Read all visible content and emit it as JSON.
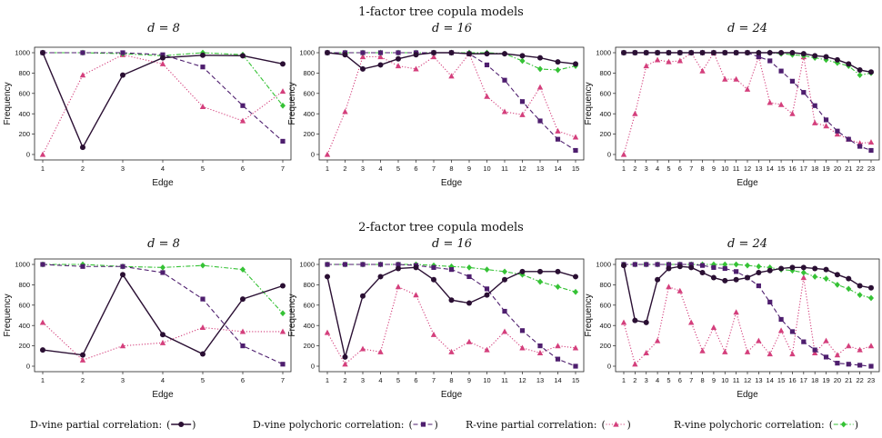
{
  "figure": {
    "section_titles": [
      "1-factor tree copula models",
      "2-factor tree copula models"
    ],
    "legend": [
      {
        "label": "D-vine partial correlation:",
        "series": "dpart"
      },
      {
        "label": "D-vine polychoric correlation:",
        "series": "dpoly"
      },
      {
        "label": "R-vine partial correlation:",
        "series": "rpart"
      },
      {
        "label": "R-vine polychoric correlation:",
        "series": "rpoly"
      }
    ]
  },
  "series_styles": {
    "dpart": {
      "color": "#2a0f33",
      "dash": "",
      "marker": "circle",
      "width": 1.4
    },
    "dpoly": {
      "color": "#4e1e6e",
      "dash": "5,3",
      "marker": "square",
      "width": 1.1
    },
    "rpart": {
      "color": "#d43f7c",
      "dash": "1.2,2",
      "marker": "triangle",
      "width": 1.1
    },
    "rpoly": {
      "color": "#35c235",
      "dash": "5,2,1.5,2",
      "marker": "diamond",
      "width": 1.1
    }
  },
  "chart_data": [
    {
      "type": "line",
      "section": "1-factor tree copula models",
      "title": "d = 8",
      "xlabel": "Edge",
      "ylabel": "Frequency",
      "ylim": [
        0,
        1000
      ],
      "yticks": [
        0,
        200,
        400,
        600,
        800,
        1000
      ],
      "x": [
        1,
        2,
        3,
        4,
        5,
        6,
        7
      ],
      "series": [
        {
          "key": "dpart",
          "values": [
            1000,
            70,
            780,
            950,
            975,
            970,
            890
          ]
        },
        {
          "key": "dpoly",
          "values": [
            1000,
            1000,
            1000,
            980,
            860,
            480,
            130
          ]
        },
        {
          "key": "rpart",
          "values": [
            0,
            780,
            980,
            890,
            470,
            330,
            620
          ]
        },
        {
          "key": "rpoly",
          "values": [
            1000,
            1000,
            990,
            970,
            1000,
            980,
            480
          ]
        }
      ]
    },
    {
      "type": "line",
      "section": "1-factor tree copula models",
      "title": "d = 16",
      "xlabel": "Edge",
      "ylabel": "Frequency",
      "ylim": [
        0,
        1000
      ],
      "yticks": [
        0,
        200,
        400,
        600,
        800,
        1000
      ],
      "x": [
        1,
        2,
        3,
        4,
        5,
        6,
        7,
        8,
        9,
        10,
        11,
        12,
        13,
        14,
        15
      ],
      "series": [
        {
          "key": "dpart",
          "values": [
            1000,
            980,
            840,
            880,
            940,
            980,
            1000,
            1000,
            990,
            990,
            990,
            970,
            950,
            910,
            890
          ]
        },
        {
          "key": "dpoly",
          "values": [
            1000,
            1000,
            1000,
            1000,
            1000,
            1000,
            1000,
            1000,
            990,
            880,
            730,
            520,
            330,
            150,
            40
          ]
        },
        {
          "key": "rpart",
          "values": [
            0,
            420,
            960,
            960,
            870,
            840,
            960,
            770,
            990,
            570,
            420,
            390,
            660,
            230,
            170
          ]
        },
        {
          "key": "rpoly",
          "values": [
            1000,
            1000,
            1000,
            1000,
            1000,
            1000,
            1000,
            1000,
            1000,
            1000,
            990,
            920,
            840,
            830,
            870
          ]
        }
      ]
    },
    {
      "type": "line",
      "section": "1-factor tree copula models",
      "title": "d = 24",
      "xlabel": "Edge",
      "ylabel": "Frequency",
      "ylim": [
        0,
        1000
      ],
      "yticks": [
        0,
        200,
        400,
        600,
        800,
        1000
      ],
      "x": [
        1,
        2,
        3,
        4,
        5,
        6,
        7,
        8,
        9,
        10,
        11,
        12,
        13,
        14,
        15,
        16,
        17,
        18,
        19,
        20,
        21,
        22,
        23
      ],
      "series": [
        {
          "key": "dpart",
          "values": [
            1000,
            1000,
            1000,
            1000,
            1000,
            1000,
            1000,
            1000,
            1000,
            1000,
            1000,
            1000,
            1000,
            1000,
            1000,
            1000,
            990,
            970,
            960,
            930,
            890,
            830,
            810
          ]
        },
        {
          "key": "dpoly",
          "values": [
            1000,
            1000,
            1000,
            1000,
            1000,
            1000,
            1000,
            1000,
            1000,
            1000,
            1000,
            1000,
            960,
            920,
            820,
            720,
            610,
            480,
            340,
            230,
            150,
            80,
            40
          ]
        },
        {
          "key": "rpart",
          "values": [
            0,
            400,
            870,
            930,
            910,
            920,
            1000,
            820,
            1000,
            740,
            740,
            640,
            960,
            510,
            490,
            400,
            960,
            310,
            280,
            200,
            150,
            110,
            120
          ]
        },
        {
          "key": "rpoly",
          "values": [
            1000,
            1000,
            1000,
            1000,
            1000,
            1000,
            1000,
            1000,
            1000,
            1000,
            1000,
            1000,
            1000,
            1000,
            990,
            980,
            970,
            950,
            930,
            900,
            870,
            780,
            800
          ]
        }
      ]
    },
    {
      "type": "line",
      "section": "2-factor tree copula models",
      "title": "d = 8",
      "xlabel": "Edge",
      "ylabel": "Frequency",
      "ylim": [
        0,
        1000
      ],
      "yticks": [
        0,
        200,
        400,
        600,
        800,
        1000
      ],
      "x": [
        1,
        2,
        3,
        4,
        5,
        6,
        7
      ],
      "series": [
        {
          "key": "dpart",
          "values": [
            160,
            110,
            900,
            310,
            120,
            660,
            790
          ]
        },
        {
          "key": "dpoly",
          "values": [
            1000,
            980,
            980,
            920,
            660,
            200,
            20
          ]
        },
        {
          "key": "rpart",
          "values": [
            430,
            60,
            200,
            230,
            380,
            340,
            340
          ]
        },
        {
          "key": "rpoly",
          "values": [
            1000,
            1000,
            980,
            970,
            990,
            950,
            520
          ]
        }
      ]
    },
    {
      "type": "line",
      "section": "2-factor tree copula models",
      "title": "d = 16",
      "xlabel": "Edge",
      "ylabel": "Frequency",
      "ylim": [
        0,
        1000
      ],
      "yticks": [
        0,
        200,
        400,
        600,
        800,
        1000
      ],
      "x": [
        1,
        2,
        3,
        4,
        5,
        6,
        7,
        8,
        9,
        10,
        11,
        12,
        13,
        14,
        15
      ],
      "series": [
        {
          "key": "dpart",
          "values": [
            880,
            90,
            690,
            880,
            960,
            970,
            850,
            650,
            620,
            700,
            850,
            930,
            930,
            930,
            880
          ]
        },
        {
          "key": "dpoly",
          "values": [
            1000,
            1000,
            1000,
            1000,
            1000,
            990,
            970,
            950,
            880,
            760,
            540,
            350,
            200,
            70,
            0
          ]
        },
        {
          "key": "rpart",
          "values": [
            330,
            20,
            170,
            140,
            780,
            700,
            310,
            140,
            240,
            160,
            340,
            180,
            130,
            200,
            180
          ]
        },
        {
          "key": "rpoly",
          "values": [
            1000,
            1000,
            1000,
            1000,
            1000,
            1000,
            990,
            980,
            970,
            950,
            930,
            900,
            830,
            780,
            730
          ]
        }
      ]
    },
    {
      "type": "line",
      "section": "2-factor tree copula models",
      "title": "d = 24",
      "xlabel": "Edge",
      "ylabel": "Frequency",
      "ylim": [
        0,
        1000
      ],
      "yticks": [
        0,
        200,
        400,
        600,
        800,
        1000
      ],
      "x": [
        1,
        2,
        3,
        4,
        5,
        6,
        7,
        8,
        9,
        10,
        11,
        12,
        13,
        14,
        15,
        16,
        17,
        18,
        19,
        20,
        21,
        22,
        23
      ],
      "series": [
        {
          "key": "dpart",
          "values": [
            990,
            450,
            430,
            850,
            960,
            980,
            970,
            920,
            870,
            840,
            850,
            870,
            920,
            940,
            960,
            970,
            970,
            960,
            950,
            900,
            860,
            790,
            770
          ]
        },
        {
          "key": "dpoly",
          "values": [
            1000,
            1000,
            1000,
            1000,
            1000,
            1000,
            1000,
            990,
            970,
            960,
            930,
            870,
            790,
            630,
            460,
            340,
            240,
            160,
            90,
            30,
            20,
            10,
            0
          ]
        },
        {
          "key": "rpart",
          "values": [
            430,
            20,
            130,
            250,
            780,
            740,
            430,
            150,
            380,
            140,
            530,
            140,
            250,
            120,
            350,
            120,
            870,
            130,
            250,
            110,
            200,
            160,
            200
          ]
        },
        {
          "key": "rpoly",
          "values": [
            1000,
            1000,
            1000,
            1000,
            1000,
            1000,
            1000,
            1000,
            1000,
            1000,
            1000,
            990,
            980,
            970,
            950,
            940,
            920,
            880,
            860,
            800,
            760,
            700,
            670
          ]
        }
      ]
    }
  ]
}
